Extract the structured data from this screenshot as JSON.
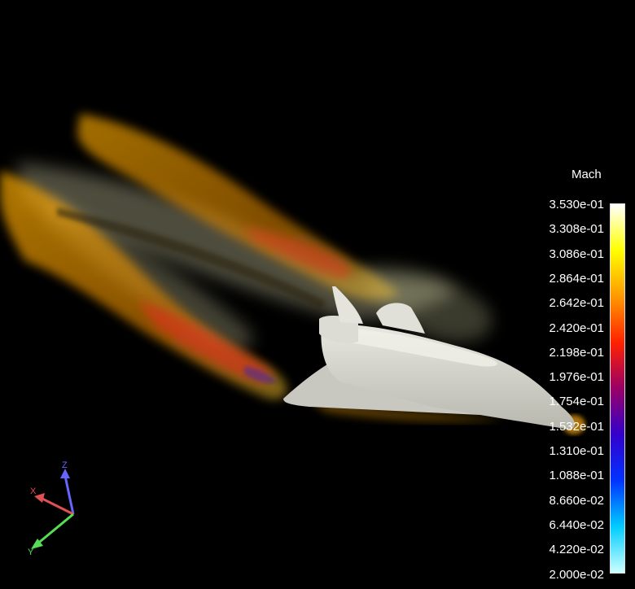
{
  "legend": {
    "title": "Mach",
    "ticks": [
      "3.530e-01",
      "3.308e-01",
      "3.086e-01",
      "2.864e-01",
      "2.642e-01",
      "2.420e-01",
      "2.198e-01",
      "1.976e-01",
      "1.754e-01",
      "1.532e-01",
      "1.310e-01",
      "1.088e-01",
      "8.660e-02",
      "6.440e-02",
      "4.220e-02",
      "2.000e-02"
    ],
    "gradient_colors": [
      "#ffffff",
      "#ffff00",
      "#ff9900",
      "#ff2200",
      "#990066",
      "#3300cc",
      "#0033ff",
      "#00ccff",
      "#ccffff"
    ]
  },
  "axes": {
    "x": "X",
    "y": "Y",
    "z": "Z",
    "colors": {
      "x": "#e05050",
      "y": "#55dd55",
      "z": "#6666ff"
    }
  },
  "scene": {
    "background": "#000000",
    "object": "space-shuttle",
    "field": "mach-isosurfaces"
  }
}
